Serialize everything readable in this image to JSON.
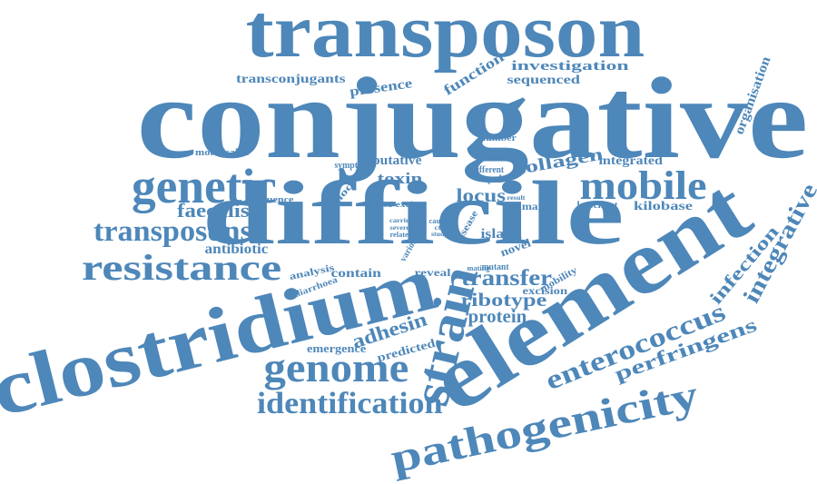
{
  "colors": {
    "word": "#4e87b9",
    "background": "#ffffff"
  },
  "words": [
    "transposon",
    "conjugative",
    "difficile",
    "clostridium",
    "element",
    "genetic",
    "mobile",
    "transposons",
    "resistance",
    "faecalis",
    "antibiotic",
    "strain",
    "genome",
    "identification",
    "pathogenicity",
    "enterococcus",
    "perfringens",
    "integrative",
    "infection",
    "organisation",
    "transconjugants",
    "presence",
    "function",
    "investigation",
    "sequenced",
    "mobilisable",
    "symptom",
    "putative",
    "toxin",
    "different",
    "collagen",
    "integrated",
    "number",
    "paloc",
    "sequence",
    "locus",
    "capable",
    "excise",
    "human",
    "result",
    "knockout",
    "kilobase",
    "limited",
    "carrie",
    "severe",
    "related",
    "cause",
    "cty",
    "study",
    "disease",
    "island",
    "novel",
    "various",
    "analysis",
    "diarrhoea",
    "contain",
    "reveal",
    "mating",
    "mutant",
    "transfer",
    "excision",
    "mobility",
    "ribotype",
    "protein",
    "adhesin",
    "emergence",
    "predicted"
  ]
}
